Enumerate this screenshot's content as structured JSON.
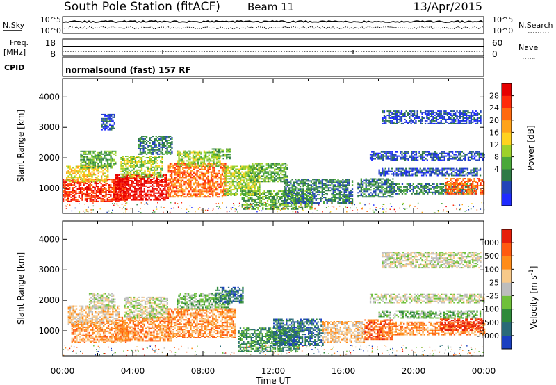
{
  "header": {
    "station": "South Pole Station (fitACF)",
    "beam": "Beam 11",
    "date": "13/Apr/2015"
  },
  "top_panels": {
    "nsky_label": "N.Sky",
    "nsky_ticks": [
      "10^5",
      "10^0"
    ],
    "nsearch_label": "N.Search",
    "nsearch_ticks": [
      "10^5",
      "10^0"
    ],
    "freq_label": "Freq.",
    "freq_unit": "[MHz]",
    "freq_ticks": [
      "18",
      "8"
    ],
    "nave_label": "Nave",
    "nave_ticks": [
      "60",
      "0"
    ],
    "cpid_label": "CPID",
    "cpid_text": "normalsound (fast) 157 RF"
  },
  "chart_data": [
    {
      "type": "heatmap",
      "name": "power",
      "ylabel": "Slant Range [km]",
      "xlabel": "Time UT",
      "ylim": [
        180,
        4600
      ],
      "xlim": [
        0,
        24
      ],
      "x_ticks": [
        "00:00",
        "04:00",
        "08:00",
        "12:00",
        "16:00",
        "20:00",
        "00:00"
      ],
      "y_ticks": [
        "1000",
        "2000",
        "3000",
        "4000"
      ],
      "y_tick_values": [
        1000,
        2000,
        3000,
        4000
      ],
      "colorbar_label": "Power [dB]",
      "colorbar_ticks": [
        "28",
        "24",
        "20",
        "16",
        "12",
        "8",
        "4"
      ],
      "colorbar_colors": [
        "#1f2bff",
        "#2244b8",
        "#2f7a46",
        "#4aa83a",
        "#9dd12a",
        "#ffd21f",
        "#ffa31a",
        "#ff6a10",
        "#ff2a0a",
        "#e60000"
      ],
      "regions": [
        {
          "t": [
            0.0,
            3.6
          ],
          "r": [
            550,
            1300
          ],
          "level": 8
        },
        {
          "t": [
            0.2,
            2.6
          ],
          "r": [
            1200,
            1700
          ],
          "level": 5
        },
        {
          "t": [
            1.0,
            3.0
          ],
          "r": [
            1650,
            2200
          ],
          "level": 3
        },
        {
          "t": [
            2.2,
            3.0
          ],
          "r": [
            2900,
            3400
          ],
          "level": 1
        },
        {
          "t": [
            3.0,
            6.0
          ],
          "r": [
            600,
            1450
          ],
          "level": 9
        },
        {
          "t": [
            3.3,
            5.7
          ],
          "r": [
            1350,
            2050
          ],
          "level": 4
        },
        {
          "t": [
            4.3,
            6.2
          ],
          "r": [
            2100,
            2700
          ],
          "level": 2
        },
        {
          "t": [
            6.0,
            9.3
          ],
          "r": [
            700,
            1800
          ],
          "level": 7
        },
        {
          "t": [
            6.5,
            9.0
          ],
          "r": [
            1700,
            2200
          ],
          "level": 4
        },
        {
          "t": [
            8.5,
            9.5
          ],
          "r": [
            1950,
            2300
          ],
          "level": 3
        },
        {
          "t": [
            9.2,
            11.2
          ],
          "r": [
            750,
            1700
          ],
          "level": 4
        },
        {
          "t": [
            10.6,
            12.8
          ],
          "r": [
            1200,
            1800
          ],
          "level": 3
        },
        {
          "t": [
            10.2,
            14.2
          ],
          "r": [
            300,
            900
          ],
          "level": 3
        },
        {
          "t": [
            12.6,
            16.5
          ],
          "r": [
            500,
            1300
          ],
          "level": 2
        },
        {
          "t": [
            16.8,
            18.8
          ],
          "r": [
            700,
            1300
          ],
          "level": 2
        },
        {
          "t": [
            18.6,
            23.6
          ],
          "r": [
            800,
            1150
          ],
          "level": 2
        },
        {
          "t": [
            21.8,
            24.0
          ],
          "r": [
            800,
            1300
          ],
          "level": 7
        },
        {
          "t": [
            18.0,
            23.8
          ],
          "r": [
            1400,
            1650
          ],
          "level": 1
        },
        {
          "t": [
            17.5,
            24.0
          ],
          "r": [
            1900,
            2200
          ],
          "level": 1
        },
        {
          "t": [
            18.2,
            23.8
          ],
          "r": [
            3100,
            3550
          ],
          "level": 1
        }
      ]
    },
    {
      "type": "heatmap",
      "name": "velocity",
      "ylabel": "Slant Range [km]",
      "xlabel": "Time UT",
      "ylim": [
        180,
        4600
      ],
      "xlim": [
        0,
        24
      ],
      "x_ticks": [
        "00:00",
        "04:00",
        "08:00",
        "12:00",
        "16:00",
        "20:00",
        "00:00"
      ],
      "y_ticks": [
        "1000",
        "2000",
        "3000",
        "4000"
      ],
      "y_tick_values": [
        1000,
        2000,
        3000,
        4000
      ],
      "colorbar_label": "Velocity [m s",
      "colorbar_label_sup": "-1",
      "colorbar_label_end": "]",
      "colorbar_ticks": [
        "1000",
        "500",
        "100",
        "25",
        "-25",
        "-100",
        "-500",
        "-1000"
      ],
      "colorbar_colors": [
        "#1a3fc0",
        "#2a6a78",
        "#2f8a3a",
        "#6fc03a",
        "#bdbdbd",
        "#f7c98a",
        "#ff8c1a",
        "#ff5a10",
        "#e61e0a"
      ],
      "regions": [
        {
          "t": [
            0.5,
            3.6
          ],
          "r": [
            600,
            1300
          ],
          "level": 6
        },
        {
          "t": [
            0.3,
            3.2
          ],
          "r": [
            1200,
            1800
          ],
          "level": 5
        },
        {
          "t": [
            1.5,
            3.0
          ],
          "r": [
            1700,
            2200
          ],
          "level": 4
        },
        {
          "t": [
            3.0,
            6.2
          ],
          "r": [
            650,
            1450
          ],
          "level": 6
        },
        {
          "t": [
            3.5,
            6.0
          ],
          "r": [
            1400,
            2100
          ],
          "level": 4
        },
        {
          "t": [
            6.0,
            9.8
          ],
          "r": [
            750,
            1700
          ],
          "level": 6
        },
        {
          "t": [
            6.5,
            9.5
          ],
          "r": [
            1700,
            2200
          ],
          "level": 3
        },
        {
          "t": [
            8.7,
            10.3
          ],
          "r": [
            1900,
            2400
          ],
          "level": 1
        },
        {
          "t": [
            10.0,
            13.5
          ],
          "r": [
            300,
            1100
          ],
          "level": 2
        },
        {
          "t": [
            12.0,
            14.8
          ],
          "r": [
            500,
            1400
          ],
          "level": 1
        },
        {
          "t": [
            14.8,
            17.2
          ],
          "r": [
            600,
            1300
          ],
          "level": 5
        },
        {
          "t": [
            17.2,
            18.8
          ],
          "r": [
            700,
            1350
          ],
          "level": 7
        },
        {
          "t": [
            18.6,
            24.0
          ],
          "r": [
            850,
            1300
          ],
          "level": 6
        },
        {
          "t": [
            21.5,
            24.0
          ],
          "r": [
            1000,
            1400
          ],
          "level": 8
        },
        {
          "t": [
            18.0,
            23.8
          ],
          "r": [
            1400,
            1650
          ],
          "level": 3
        },
        {
          "t": [
            17.5,
            24.0
          ],
          "r": [
            1900,
            2200
          ],
          "level": 4
        },
        {
          "t": [
            18.2,
            23.8
          ],
          "r": [
            3050,
            3550
          ],
          "level": 4
        }
      ]
    }
  ]
}
